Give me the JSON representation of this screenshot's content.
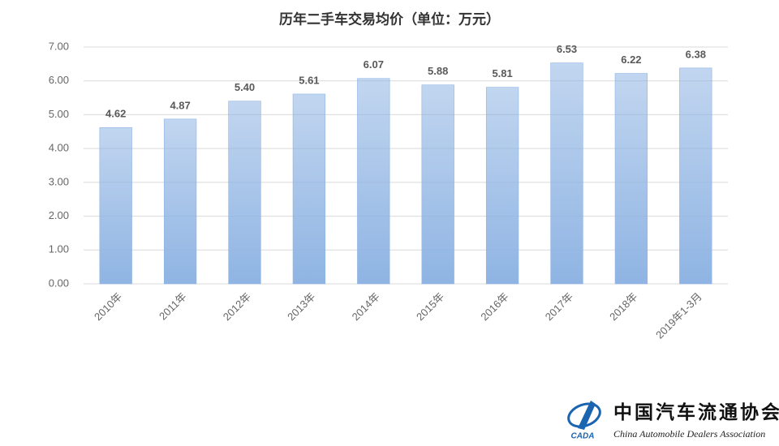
{
  "chart_data": {
    "type": "bar",
    "title": "历年二手车交易均价（单位：万元）",
    "categories": [
      "2010年",
      "2011年",
      "2012年",
      "2013年",
      "2014年",
      "2015年",
      "2016年",
      "2017年",
      "2018年",
      "2019年1-3月"
    ],
    "values": [
      4.62,
      4.87,
      5.4,
      5.61,
      6.07,
      5.88,
      5.81,
      6.53,
      6.22,
      6.38
    ],
    "value_labels": [
      "4.62",
      "4.87",
      "5.40",
      "5.61",
      "6.07",
      "5.88",
      "5.81",
      "6.53",
      "6.22",
      "6.38"
    ],
    "color": "#8fb4e3",
    "ylim": [
      0,
      7
    ],
    "yticks": [
      {
        "value": 0,
        "label": "0.00"
      },
      {
        "value": 1,
        "label": "1.00"
      },
      {
        "value": 2,
        "label": "2.00"
      },
      {
        "value": 3,
        "label": "3.00"
      },
      {
        "value": 4,
        "label": "4.00"
      },
      {
        "value": 5,
        "label": "5.00"
      },
      {
        "value": 6,
        "label": "6.00"
      },
      {
        "value": 7,
        "label": "7.00"
      }
    ],
    "grid": true
  },
  "logo": {
    "name_cn": "中国汽车流通协会",
    "name_en": "China Automobile Dealers Association",
    "abbr": "CADA"
  }
}
